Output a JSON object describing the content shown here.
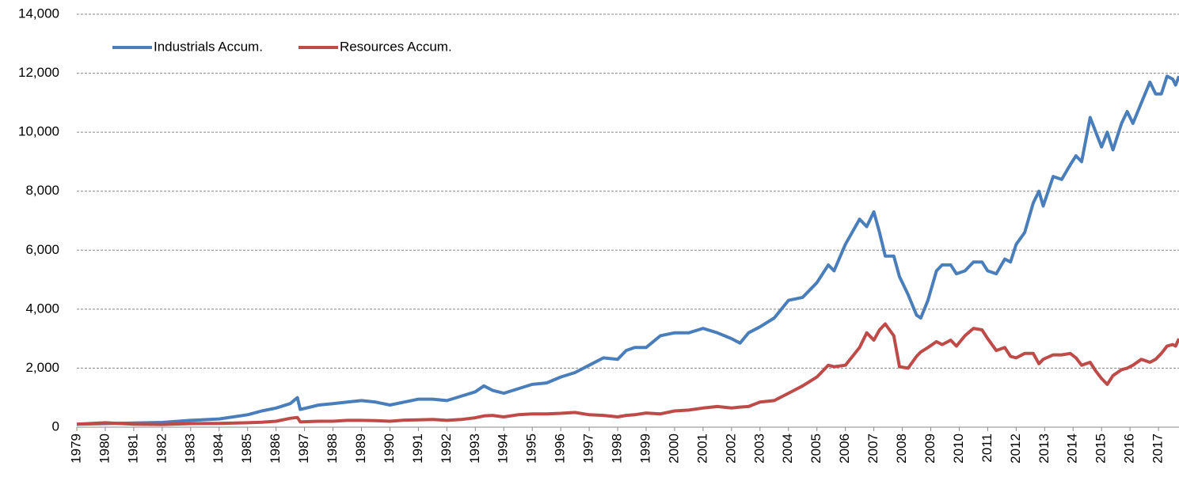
{
  "chart_data": {
    "type": "line",
    "x": [
      1979,
      1980,
      1981,
      1982,
      1983,
      1984,
      1985,
      1985.5,
      1986,
      1986.5,
      1986.75,
      1986.85,
      1987.5,
      1988,
      1988.5,
      1989,
      1989.5,
      1990,
      1990.5,
      1991,
      1991.5,
      1992,
      1992.5,
      1993,
      1993.3,
      1993.6,
      1994,
      1994.5,
      1995,
      1995.5,
      1996,
      1996.5,
      1997,
      1997.5,
      1998,
      1998.3,
      1998.6,
      1999,
      1999.5,
      2000,
      2000.5,
      2001,
      2001.5,
      2002,
      2002.3,
      2002.6,
      2003,
      2003.5,
      2004,
      2004.5,
      2005,
      2005.4,
      2005.6,
      2006,
      2006.5,
      2006.75,
      2007,
      2007.2,
      2007.4,
      2007.7,
      2007.9,
      2008.2,
      2008.5,
      2008.65,
      2008.9,
      2009.2,
      2009.4,
      2009.7,
      2009.9,
      2010.2,
      2010.5,
      2010.8,
      2011,
      2011.3,
      2011.6,
      2011.8,
      2012,
      2012.3,
      2012.6,
      2012.8,
      2012.95,
      2013.3,
      2013.6,
      2013.9,
      2014.1,
      2014.3,
      2014.6,
      2014.8,
      2015,
      2015.2,
      2015.4,
      2015.7,
      2015.9,
      2016.1,
      2016.4,
      2016.7,
      2016.9,
      2017.1,
      2017.3,
      2017.5,
      2017.6,
      2017.72
    ],
    "series": [
      {
        "name": "Industrials Accum.",
        "color": "#4a7ebb",
        "values": [
          100,
          120,
          140,
          160,
          230,
          280,
          420,
          550,
          650,
          800,
          1000,
          600,
          750,
          800,
          850,
          900,
          850,
          750,
          850,
          950,
          950,
          900,
          1050,
          1200,
          1400,
          1250,
          1150,
          1300,
          1450,
          1500,
          1700,
          1850,
          2100,
          2350,
          2300,
          2600,
          2700,
          2700,
          3100,
          3200,
          3200,
          3350,
          3200,
          3000,
          2850,
          3200,
          3400,
          3700,
          4300,
          4400,
          4900,
          5500,
          5300,
          6200,
          7050,
          6800,
          7300,
          6600,
          5800,
          5800,
          5100,
          4500,
          3800,
          3700,
          4300,
          5300,
          5500,
          5500,
          5200,
          5300,
          5600,
          5600,
          5300,
          5200,
          5700,
          5600,
          6200,
          6600,
          7600,
          8000,
          7500,
          8500,
          8400,
          8900,
          9200,
          9000,
          10500,
          10000,
          9500,
          10000,
          9400,
          10300,
          10700,
          10300,
          11000,
          11700,
          11300,
          11300,
          11900,
          11800,
          11600,
          11900
        ]
      },
      {
        "name": "Resources Accum.",
        "color": "#be4b48",
        "values": [
          100,
          150,
          100,
          90,
          120,
          130,
          150,
          170,
          200,
          300,
          330,
          180,
          200,
          200,
          230,
          230,
          220,
          200,
          240,
          250,
          260,
          230,
          260,
          320,
          380,
          400,
          350,
          420,
          450,
          450,
          470,
          500,
          420,
          400,
          350,
          400,
          420,
          480,
          450,
          550,
          580,
          650,
          700,
          650,
          680,
          700,
          850,
          900,
          1150,
          1400,
          1700,
          2100,
          2050,
          2100,
          2700,
          3200,
          2950,
          3300,
          3500,
          3100,
          2050,
          2000,
          2400,
          2550,
          2700,
          2900,
          2800,
          2950,
          2750,
          3100,
          3350,
          3300,
          3000,
          2600,
          2700,
          2400,
          2350,
          2500,
          2500,
          2150,
          2300,
          2450,
          2450,
          2500,
          2350,
          2100,
          2200,
          1900,
          1650,
          1450,
          1750,
          1950,
          2000,
          2100,
          2300,
          2200,
          2300,
          2500,
          2750,
          2800,
          2750,
          3000
        ]
      }
    ],
    "xlim": [
      1979,
      2017.72
    ],
    "xticks": [
      1979,
      1980,
      1981,
      1982,
      1983,
      1984,
      1985,
      1986,
      1987,
      1988,
      1989,
      1990,
      1991,
      1992,
      1993,
      1994,
      1995,
      1996,
      1997,
      1998,
      1999,
      2000,
      2001,
      2002,
      2003,
      2004,
      2005,
      2006,
      2007,
      2008,
      2009,
      2010,
      2011,
      2012,
      2013,
      2014,
      2015,
      2016,
      2017
    ],
    "ylim": [
      0,
      14000
    ],
    "yticks": [
      0,
      {
        "value": 2000,
        "label": "2,000"
      },
      {
        "value": 4000,
        "label": "4,000"
      },
      {
        "value": 6000,
        "label": "6,000"
      },
      {
        "value": 8000,
        "label": "8,000"
      },
      {
        "value": 10000,
        "label": "10,000"
      },
      {
        "value": 12000,
        "label": "12,000"
      },
      {
        "value": 14000,
        "label": "14,000"
      }
    ],
    "grid": true,
    "legend": "top-left"
  }
}
